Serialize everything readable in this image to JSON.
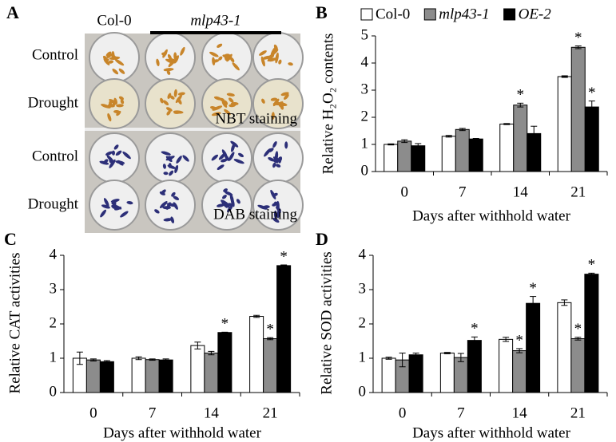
{
  "photo_panel": {
    "label": "A",
    "columns": [
      "Col-0",
      "mlp43-1"
    ],
    "rows": [
      "Control",
      "Drought",
      "Control",
      "Drought"
    ],
    "stains": [
      "NBT staining",
      "DAB staining"
    ]
  },
  "chart_data": [
    {
      "type": "bar",
      "panel": "B",
      "y_label": "Relative H₂O₂ contents",
      "x_label": "Days after withhold water",
      "categories": [
        "0",
        "7",
        "14",
        "21"
      ],
      "ylim": [
        0,
        5
      ],
      "yticks": [
        0,
        1,
        2,
        3,
        4,
        5
      ],
      "series": [
        {
          "name": "Col-0",
          "color": "#ffffff",
          "italic": false,
          "values": [
            1.0,
            1.3,
            1.75,
            3.5
          ],
          "errors": [
            0.02,
            0.03,
            0.02,
            0.03
          ],
          "significance": [
            null,
            null,
            null,
            null
          ]
        },
        {
          "name": "mlp43-1",
          "color": "#8c8c8c",
          "italic": true,
          "values": [
            1.12,
            1.55,
            2.45,
            4.58
          ],
          "errors": [
            0.05,
            0.04,
            0.07,
            0.05
          ],
          "significance": [
            null,
            null,
            "*",
            "*"
          ]
        },
        {
          "name": "OE-2",
          "color": "#000000",
          "italic": true,
          "values": [
            0.95,
            1.2,
            1.4,
            2.38
          ],
          "errors": [
            0.08,
            0.02,
            0.27,
            0.22
          ],
          "significance": [
            null,
            null,
            null,
            "*"
          ]
        }
      ]
    },
    {
      "type": "bar",
      "panel": "C",
      "y_label": "Relative CAT activities",
      "x_label": "Days after withhold water",
      "categories": [
        "0",
        "7",
        "14",
        "21"
      ],
      "ylim": [
        0,
        4
      ],
      "yticks": [
        0,
        1,
        2,
        3,
        4
      ],
      "series": [
        {
          "color": "#ffffff",
          "values": [
            1.0,
            1.0,
            1.37,
            2.22
          ],
          "errors": [
            0.18,
            0.04,
            0.1,
            0.03
          ],
          "significance": [
            null,
            null,
            null,
            null
          ]
        },
        {
          "color": "#8c8c8c",
          "values": [
            0.95,
            0.96,
            1.15,
            1.57
          ],
          "errors": [
            0.03,
            0.02,
            0.05,
            0.03
          ],
          "significance": [
            null,
            null,
            null,
            "*"
          ]
        },
        {
          "color": "#000000",
          "values": [
            0.9,
            0.95,
            1.75,
            3.7
          ],
          "errors": [
            0.03,
            0.03,
            0.01,
            0.02
          ],
          "significance": [
            null,
            null,
            "*",
            "*"
          ]
        }
      ]
    },
    {
      "type": "bar",
      "panel": "D",
      "y_label": "Relative SOD activities",
      "x_label": "Days after withhold water",
      "categories": [
        "0",
        "7",
        "14",
        "21"
      ],
      "ylim": [
        0,
        4
      ],
      "yticks": [
        0,
        1,
        2,
        3,
        4
      ],
      "series": [
        {
          "color": "#ffffff",
          "values": [
            1.0,
            1.15,
            1.55,
            2.62
          ],
          "errors": [
            0.03,
            0.02,
            0.06,
            0.08
          ],
          "significance": [
            null,
            null,
            null,
            null
          ]
        },
        {
          "color": "#8c8c8c",
          "values": [
            0.95,
            1.02,
            1.22,
            1.57
          ],
          "errors": [
            0.2,
            0.12,
            0.06,
            0.04
          ],
          "significance": [
            null,
            null,
            "*",
            "*"
          ]
        },
        {
          "color": "#000000",
          "values": [
            1.1,
            1.52,
            2.6,
            3.45
          ],
          "errors": [
            0.05,
            0.1,
            0.2,
            0.03
          ],
          "significance": [
            null,
            "*",
            "*",
            "*"
          ]
        }
      ]
    }
  ]
}
